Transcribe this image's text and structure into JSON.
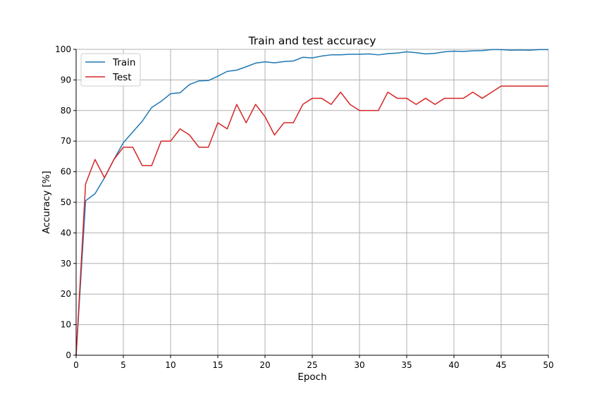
{
  "chart_data": {
    "type": "line",
    "title": "Train and test accuracy",
    "xlabel": "Epoch",
    "ylabel": "Accuracy [%]",
    "xlim": [
      0,
      50
    ],
    "ylim": [
      0,
      100
    ],
    "x_ticks": [
      0,
      5,
      10,
      15,
      20,
      25,
      30,
      35,
      40,
      45,
      50
    ],
    "y_ticks": [
      0,
      10,
      20,
      30,
      40,
      50,
      60,
      70,
      80,
      90,
      100
    ],
    "grid": true,
    "legend_position": "top-left",
    "x": [
      0,
      1,
      2,
      3,
      4,
      5,
      6,
      7,
      8,
      9,
      10,
      11,
      12,
      13,
      14,
      15,
      16,
      17,
      18,
      19,
      20,
      21,
      22,
      23,
      24,
      25,
      26,
      27,
      28,
      29,
      30,
      31,
      32,
      33,
      34,
      35,
      36,
      37,
      38,
      39,
      40,
      41,
      42,
      43,
      44,
      45,
      46,
      47,
      48,
      49,
      50
    ],
    "series": [
      {
        "name": "Train",
        "color": "#1f77b4",
        "values": [
          0,
          50.5,
          52.8,
          58,
          64,
          69.5,
          73,
          76.5,
          81,
          83,
          85.5,
          85.8,
          88.5,
          89.7,
          89.8,
          91.2,
          92.8,
          93.2,
          94.3,
          95.5,
          95.9,
          95.6,
          96,
          96.2,
          97.4,
          97.2,
          97.8,
          98.2,
          98.2,
          98.4,
          98.4,
          98.5,
          98.2,
          98.6,
          98.8,
          99.2,
          98.9,
          98.5,
          98.7,
          99.2,
          99.4,
          99.3,
          99.5,
          99.6,
          99.9,
          99.9,
          99.7,
          99.8,
          99.7,
          99.9,
          99.9
        ]
      },
      {
        "name": "Test",
        "color": "#d62728",
        "values": [
          0,
          56,
          64,
          58,
          64,
          68,
          68,
          62,
          62,
          70,
          70,
          74,
          72,
          68,
          68,
          76,
          74,
          82,
          76,
          82,
          78,
          72,
          76,
          76,
          82,
          84,
          84,
          82,
          86,
          82,
          80,
          80,
          80,
          86,
          84,
          84,
          82,
          84,
          82,
          84,
          84,
          84,
          86,
          84,
          86,
          88,
          88,
          88,
          88,
          88,
          88
        ]
      }
    ]
  }
}
